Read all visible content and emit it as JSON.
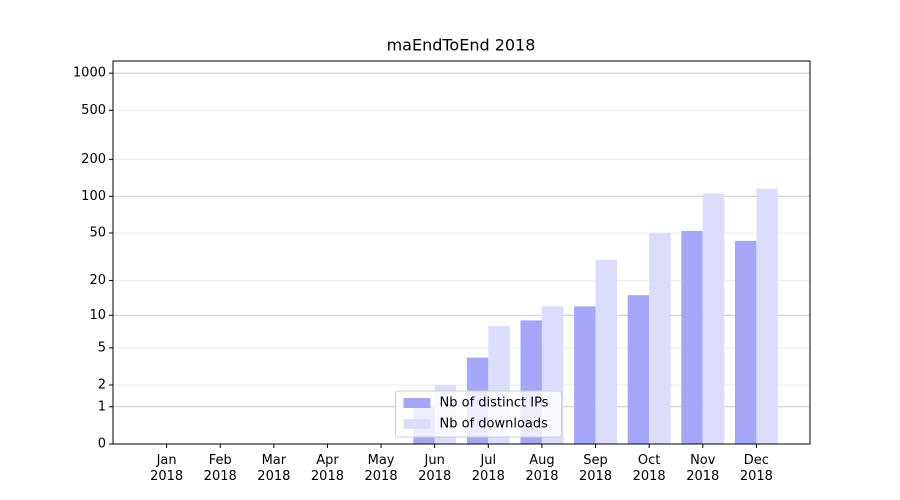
{
  "chart_data": {
    "type": "bar",
    "title": "maEndToEnd 2018",
    "categories": [
      "Jan\n2018",
      "Feb\n2018",
      "Mar\n2018",
      "Apr\n2018",
      "May\n2018",
      "Jun\n2018",
      "Jul\n2018",
      "Aug\n2018",
      "Sep\n2018",
      "Oct\n2018",
      "Nov\n2018",
      "Dec\n2018"
    ],
    "series": [
      {
        "name": "Nb of distinct IPs",
        "color": "#a6a6f7",
        "values": [
          0,
          0,
          0,
          0,
          0,
          1,
          4,
          9,
          12,
          15,
          52,
          43
        ]
      },
      {
        "name": "Nb of downloads",
        "color": "#dcdcfc",
        "values": [
          0,
          0,
          0,
          0,
          0,
          2,
          8,
          12,
          30,
          50,
          105,
          115
        ]
      }
    ],
    "yscale": "log1p",
    "ylim": [
      0,
      1255
    ],
    "yticks": [
      0,
      1,
      2,
      5,
      10,
      20,
      50,
      100,
      200,
      500,
      1000
    ],
    "grid": true,
    "legend": "lower center"
  }
}
